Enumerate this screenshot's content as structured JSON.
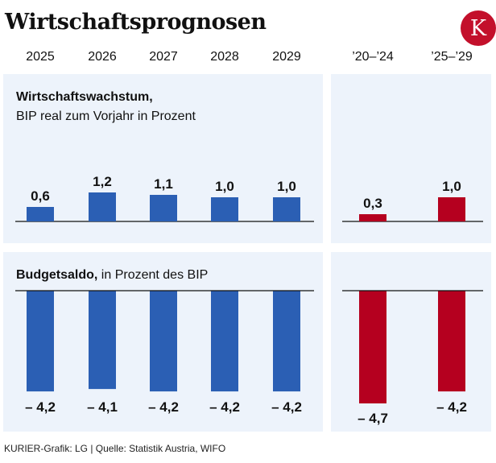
{
  "header": {
    "title": "Wirtschaftsprognosen",
    "logo_letter": "K",
    "columns": [
      "2025",
      "2026",
      "2027",
      "2028",
      "2029",
      "’20–’24",
      "’25–’29"
    ]
  },
  "colors": {
    "annual": "#2b5fb4",
    "average": "#b5001f",
    "panel": "#edf3fb",
    "logo": "#c3102b"
  },
  "chart_data": [
    {
      "type": "bar",
      "title": "Wirtschaftswachstum,",
      "subtitle": "BIP real zum Vorjahr in Prozent",
      "categories": [
        "2025",
        "2026",
        "2027",
        "2028",
        "2029"
      ],
      "values": [
        0.6,
        1.2,
        1.1,
        1.0,
        1.0
      ],
      "value_labels": [
        "0,6",
        "1,2",
        "1,1",
        "1,0",
        "1,0"
      ],
      "average_categories": [
        "’20–’24",
        "’25–’29"
      ],
      "average_values": [
        0.3,
        1.0
      ],
      "average_labels": [
        "0,3",
        "1,0"
      ],
      "ylim": [
        0,
        1.2
      ]
    },
    {
      "type": "bar",
      "title": "Budgetsaldo,",
      "subtitle": "in Prozent des BIP",
      "categories": [
        "2025",
        "2026",
        "2027",
        "2028",
        "2029"
      ],
      "values": [
        -4.2,
        -4.1,
        -4.2,
        -4.2,
        -4.2
      ],
      "value_labels": [
        "– 4,2",
        "– 4,1",
        "– 4,2",
        "– 4,2",
        "– 4,2"
      ],
      "average_categories": [
        "’20–’24",
        "’25–’29"
      ],
      "average_values": [
        -4.7,
        -4.2
      ],
      "average_labels": [
        "– 4,7",
        "– 4,2"
      ],
      "ylim": [
        -4.7,
        0
      ]
    }
  ],
  "footer": {
    "source": "KURIER-Grafik: LG | Quelle: Statistik Austria, WIFO"
  }
}
